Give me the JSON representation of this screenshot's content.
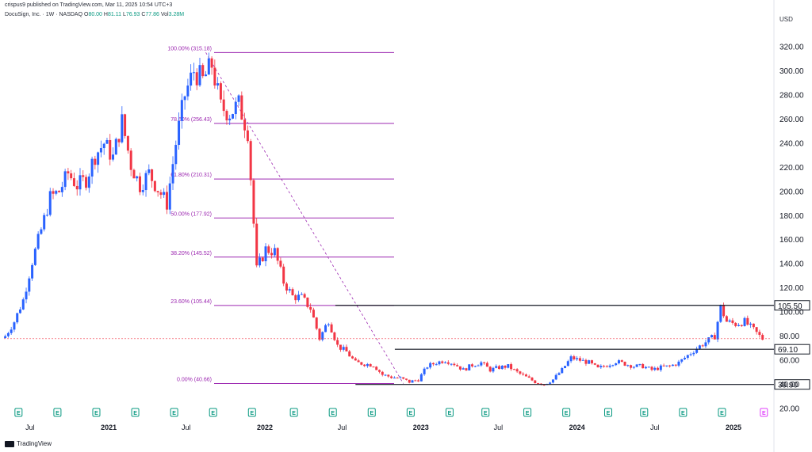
{
  "header": {
    "publisher": "crispus9 published on TradingView.com, Mar 11, 2025 10:54 UTC+3",
    "symbol": "DocuSign, Inc. · 1W · NASDAQ",
    "ohlc": [
      {
        "label": "O",
        "value": "80.00"
      },
      {
        "label": "H",
        "value": "81.11"
      },
      {
        "label": "L",
        "value": "76.93"
      },
      {
        "label": "C",
        "value": "77.86"
      },
      {
        "label": "Vol",
        "value": "3.28M"
      }
    ],
    "currency": "USD"
  },
  "footer": {
    "brand": "TradingView"
  },
  "colors": {
    "up": "#2962ff",
    "down": "#f23645",
    "fib": "#9c27b0",
    "level": "#131722",
    "earnings": "#089981",
    "earnings_future": "#e040fb"
  },
  "chart_data": {
    "type": "candlestick",
    "interval": "1W",
    "y_axis": {
      "min": 20,
      "max": 320,
      "ticks": [
        320,
        300,
        280,
        260,
        240,
        220,
        200,
        180,
        160,
        140,
        120,
        100,
        80,
        60,
        40,
        20
      ],
      "tick_labels": [
        "320.00",
        "300.00",
        "280.00",
        "260.00",
        "240.00",
        "220.00",
        "200.00",
        "180.00",
        "160.00",
        "140.00",
        "120.00",
        "100.00",
        "80.00",
        "60.00",
        "40.00",
        "20.00"
      ]
    },
    "x_axis": {
      "range": [
        "2020-05-01",
        "2025-03-31"
      ],
      "ticks": [
        {
          "label": "Jul",
          "date": "2020-07-01",
          "year": false
        },
        {
          "label": "2021",
          "date": "2021-01-01",
          "year": true
        },
        {
          "label": "Jul",
          "date": "2021-07-01",
          "year": false
        },
        {
          "label": "2022",
          "date": "2022-01-01",
          "year": true
        },
        {
          "label": "Jul",
          "date": "2022-07-01",
          "year": false
        },
        {
          "label": "2023",
          "date": "2023-01-01",
          "year": true
        },
        {
          "label": "Jul",
          "date": "2023-07-01",
          "year": false
        },
        {
          "label": "2024",
          "date": "2024-01-01",
          "year": true
        },
        {
          "label": "Jul",
          "date": "2024-07-01",
          "year": false
        },
        {
          "label": "2025",
          "date": "2025-01-01",
          "year": true
        }
      ]
    },
    "close_path": [
      [
        "2020-05-04",
        80
      ],
      [
        "2020-05-25",
        92
      ],
      [
        "2020-06-15",
        110
      ],
      [
        "2020-07-06",
        142
      ],
      [
        "2020-07-27",
        168
      ],
      [
        "2020-08-17",
        195
      ],
      [
        "2020-09-07",
        200
      ],
      [
        "2020-09-28",
        215
      ],
      [
        "2020-10-19",
        205
      ],
      [
        "2020-11-09",
        210
      ],
      [
        "2020-11-30",
        230
      ],
      [
        "2020-12-21",
        240
      ],
      [
        "2021-01-11",
        228
      ],
      [
        "2021-02-01",
        258
      ],
      [
        "2021-02-22",
        222
      ],
      [
        "2021-03-15",
        205
      ],
      [
        "2021-04-05",
        215
      ],
      [
        "2021-04-26",
        202
      ],
      [
        "2021-05-17",
        190
      ],
      [
        "2021-06-07",
        240
      ],
      [
        "2021-06-28",
        280
      ],
      [
        "2021-07-19",
        300
      ],
      [
        "2021-08-09",
        292
      ],
      [
        "2021-08-30",
        305
      ],
      [
        "2021-09-20",
        270
      ],
      [
        "2021-10-11",
        265
      ],
      [
        "2021-11-01",
        272
      ],
      [
        "2021-11-22",
        250
      ],
      [
        "2021-12-13",
        135
      ],
      [
        "2022-01-03",
        152
      ],
      [
        "2022-01-24",
        150
      ],
      [
        "2022-02-14",
        125
      ],
      [
        "2022-03-07",
        113
      ],
      [
        "2022-03-28",
        112
      ],
      [
        "2022-04-18",
        103
      ],
      [
        "2022-05-09",
        78
      ],
      [
        "2022-05-30",
        93
      ],
      [
        "2022-06-20",
        72
      ],
      [
        "2022-07-11",
        67
      ],
      [
        "2022-08-01",
        58
      ],
      [
        "2022-08-22",
        57
      ],
      [
        "2022-09-12",
        56
      ],
      [
        "2022-10-03",
        48
      ],
      [
        "2022-10-24",
        46
      ],
      [
        "2022-11-14",
        45
      ],
      [
        "2022-12-05",
        42
      ],
      [
        "2022-12-26",
        44
      ],
      [
        "2023-01-16",
        55
      ],
      [
        "2023-02-06",
        58
      ],
      [
        "2023-02-27",
        60
      ],
      [
        "2023-03-20",
        57
      ],
      [
        "2023-04-10",
        52
      ],
      [
        "2023-05-01",
        56
      ],
      [
        "2023-05-22",
        58
      ],
      [
        "2023-06-12",
        52
      ],
      [
        "2023-07-03",
        54
      ],
      [
        "2023-07-24",
        55
      ],
      [
        "2023-08-14",
        50
      ],
      [
        "2023-09-04",
        46
      ],
      [
        "2023-09-25",
        42
      ],
      [
        "2023-10-16",
        40
      ],
      [
        "2023-11-06",
        44
      ],
      [
        "2023-11-27",
        52
      ],
      [
        "2023-12-18",
        62
      ],
      [
        "2024-01-08",
        60
      ],
      [
        "2024-01-29",
        58
      ],
      [
        "2024-02-19",
        53
      ],
      [
        "2024-03-11",
        56
      ],
      [
        "2024-04-01",
        59
      ],
      [
        "2024-04-22",
        57
      ],
      [
        "2024-05-13",
        55
      ],
      [
        "2024-06-03",
        55
      ],
      [
        "2024-06-24",
        52
      ],
      [
        "2024-07-15",
        54
      ],
      [
        "2024-08-05",
        55
      ],
      [
        "2024-08-26",
        58
      ],
      [
        "2024-09-16",
        64
      ],
      [
        "2024-10-07",
        70
      ],
      [
        "2024-10-28",
        75
      ],
      [
        "2024-11-18",
        80
      ],
      [
        "2024-12-02",
        104
      ],
      [
        "2024-12-16",
        92
      ],
      [
        "2025-01-06",
        90
      ],
      [
        "2025-01-27",
        92
      ],
      [
        "2025-02-17",
        85
      ],
      [
        "2025-03-03",
        80
      ],
      [
        "2025-03-10",
        77.86
      ]
    ],
    "current_price": 77.86,
    "fibonacci": {
      "start_date": "2020-05-01",
      "end_date": "2023-01-01",
      "levels": [
        {
          "label": "100.00% (315.18)",
          "price": 315.18
        },
        {
          "label": "78.60% (256.43)",
          "price": 256.43
        },
        {
          "label": "61.80% (210.31)",
          "price": 210.31
        },
        {
          "label": "50.00% (177.92)",
          "price": 177.92
        },
        {
          "label": "38.20% (145.52)",
          "price": 145.52
        },
        {
          "label": "23.60% (105.44)",
          "price": 105.44
        },
        {
          "label": "0.00% (40.66)",
          "price": 40.66
        }
      ]
    },
    "trend_line": [
      [
        "2021-08-16",
        315.18
      ],
      [
        "2022-11-21",
        40.66
      ]
    ],
    "levels": [
      {
        "label": "105.50",
        "price": 105.5,
        "from": "2022-06-15"
      },
      {
        "label": "69.10",
        "price": 69.1,
        "from": "2022-11-01"
      },
      {
        "label": "39.90",
        "price": 39.9,
        "from": "2022-08-01"
      }
    ],
    "earnings": [
      {
        "label": "E",
        "date": "2020-06-04",
        "future": false
      },
      {
        "label": "E",
        "date": "2020-09-03",
        "future": false
      },
      {
        "label": "E",
        "date": "2020-12-03",
        "future": false
      },
      {
        "label": "E",
        "date": "2021-03-04",
        "future": false
      },
      {
        "label": "E",
        "date": "2021-06-03",
        "future": false
      },
      {
        "label": "E",
        "date": "2021-09-02",
        "future": false
      },
      {
        "label": "E",
        "date": "2021-12-02",
        "future": false
      },
      {
        "label": "E",
        "date": "2022-03-10",
        "future": false
      },
      {
        "label": "E",
        "date": "2022-06-09",
        "future": false
      },
      {
        "label": "E",
        "date": "2022-09-08",
        "future": false
      },
      {
        "label": "E",
        "date": "2022-12-08",
        "future": false
      },
      {
        "label": "E",
        "date": "2023-03-09",
        "future": false
      },
      {
        "label": "E",
        "date": "2023-06-01",
        "future": false
      },
      {
        "label": "E",
        "date": "2023-09-07",
        "future": false
      },
      {
        "label": "E",
        "date": "2023-12-07",
        "future": false
      },
      {
        "label": "E",
        "date": "2024-03-14",
        "future": false
      },
      {
        "label": "E",
        "date": "2024-06-06",
        "future": false
      },
      {
        "label": "E",
        "date": "2024-09-05",
        "future": false
      },
      {
        "label": "E",
        "date": "2024-12-05",
        "future": false
      },
      {
        "label": "E",
        "date": "2025-03-13",
        "future": true
      }
    ]
  }
}
